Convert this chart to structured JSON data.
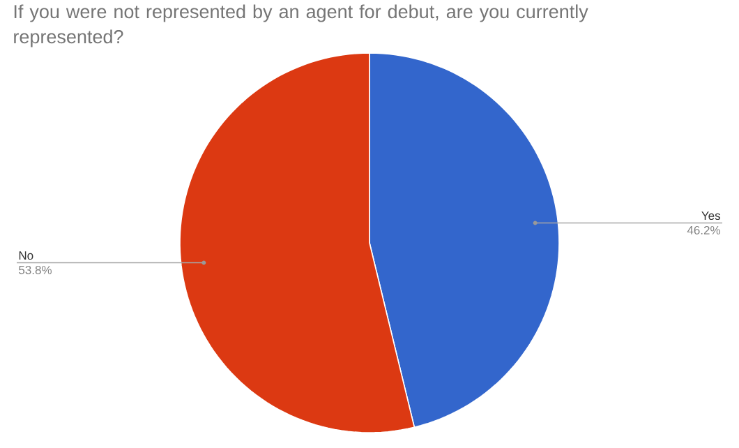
{
  "chart_data": {
    "type": "pie",
    "title": "If you were not represented by an agent for debut, are you currently represented?",
    "categories": [
      "Yes",
      "No"
    ],
    "values": [
      46.2,
      53.8
    ],
    "colors": [
      "#3366cc",
      "#dc3912"
    ],
    "value_labels": [
      "46.2%",
      "53.8%"
    ]
  }
}
